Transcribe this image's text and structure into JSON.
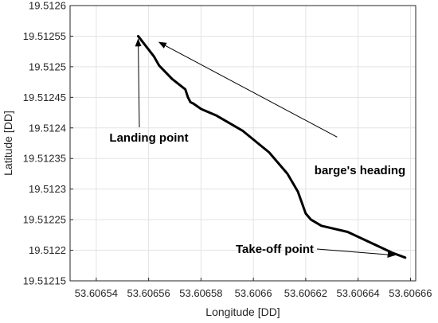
{
  "chart_data": {
    "type": "line",
    "title": "",
    "xlabel": "Longitude [DD]",
    "ylabel": "Latitude [DD]",
    "xlim": [
      53.60653,
      53.606662
    ],
    "ylim": [
      19.51215,
      19.5126
    ],
    "grid": true,
    "x_ticks": [
      {
        "value": 53.60654,
        "label": "53.60654"
      },
      {
        "value": 53.60656,
        "label": "53.60656"
      },
      {
        "value": 53.60658,
        "label": "53.60658"
      },
      {
        "value": 53.6066,
        "label": "53.6066"
      },
      {
        "value": 53.60662,
        "label": "53.60662"
      },
      {
        "value": 53.60664,
        "label": "53.60664"
      },
      {
        "value": 53.60666,
        "label": "53.60666"
      }
    ],
    "y_ticks": [
      {
        "value": 19.51215,
        "label": "19.51215"
      },
      {
        "value": 19.5122,
        "label": "19.5122"
      },
      {
        "value": 19.51225,
        "label": "19.51225"
      },
      {
        "value": 19.5123,
        "label": "19.5123"
      },
      {
        "value": 19.51235,
        "label": "19.51235"
      },
      {
        "value": 19.5124,
        "label": "19.5124"
      },
      {
        "value": 19.51245,
        "label": "19.51245"
      },
      {
        "value": 19.5125,
        "label": "19.5125"
      },
      {
        "value": 19.51255,
        "label": "19.51255"
      },
      {
        "value": 19.5126,
        "label": "19.5126"
      }
    ],
    "series": [
      {
        "color": "#000000",
        "x": [
          53.606556,
          53.606562,
          53.606564,
          53.606569,
          53.606574,
          53.606575,
          53.606576,
          53.606577,
          53.60658,
          53.606586,
          53.606596,
          53.606606,
          53.606613,
          53.606617,
          53.60662,
          53.606622,
          53.606626,
          53.606636,
          53.606646,
          53.606653,
          53.606658
        ],
        "y": [
          19.51255,
          19.512517,
          19.512502,
          19.51248,
          19.512463,
          19.51245,
          19.512442,
          19.51244,
          19.512431,
          19.51242,
          19.512395,
          19.51236,
          19.512325,
          19.512296,
          19.51226,
          19.51225,
          19.51224,
          19.51223,
          19.51221,
          19.512196,
          19.512188
        ]
      }
    ],
    "annotations": [
      {
        "text": "Landing point",
        "target": [
          53.606556,
          19.512545
        ]
      },
      {
        "text": "barge's heading",
        "from": [
          53.606632,
          19.512385
        ],
        "target": [
          53.606564,
          19.51254
        ]
      },
      {
        "text": "Take-off point",
        "target": [
          53.606654,
          19.512192
        ]
      }
    ]
  }
}
